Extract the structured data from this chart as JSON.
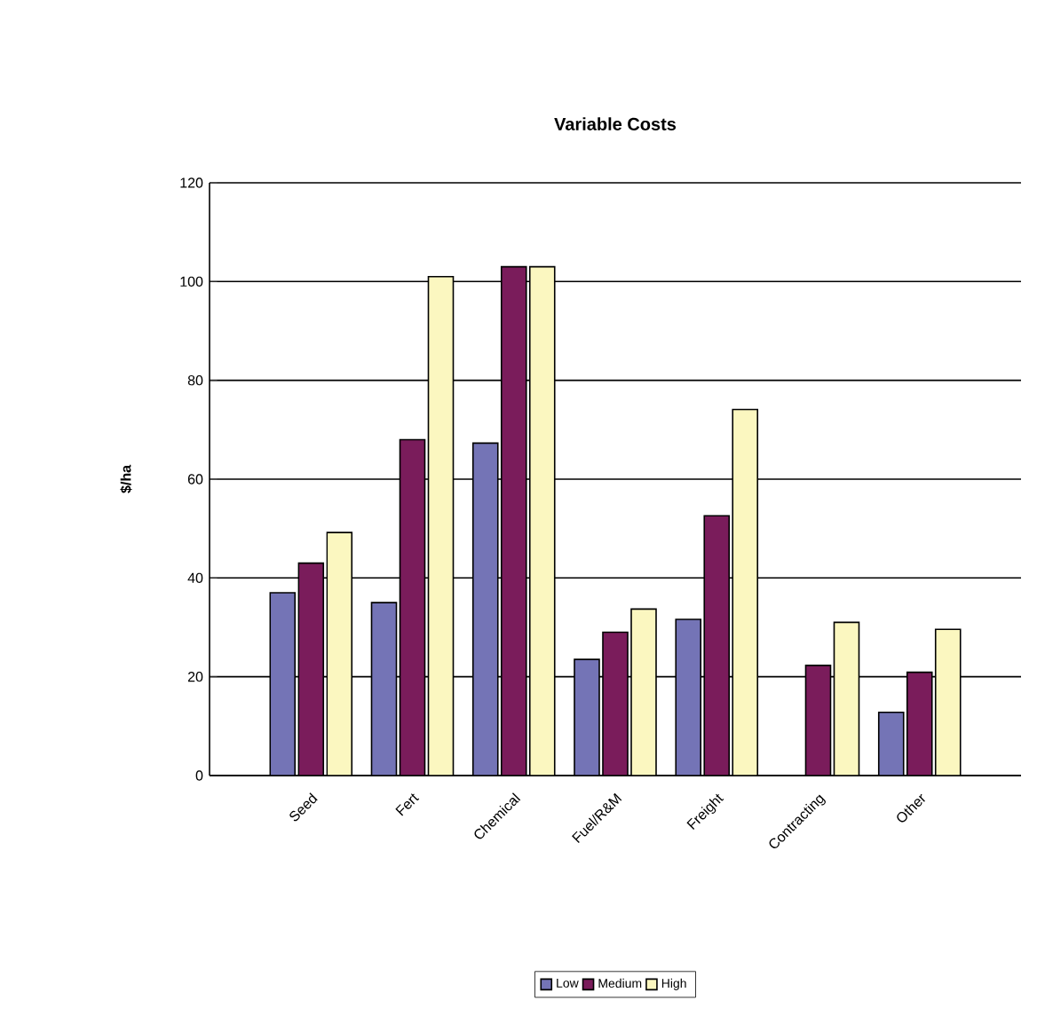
{
  "chart_data": {
    "type": "bar",
    "title": "Variable Costs",
    "ylabel": "$/ha",
    "categories": [
      "Seed",
      "Fert",
      "Chemical",
      "Fuel/R&M",
      "Freight",
      "Contracting",
      "Other"
    ],
    "series": [
      {
        "name": "Low",
        "color": "#7474b6",
        "values": [
          37,
          35,
          67.3,
          23.5,
          31.6,
          null,
          12.8
        ]
      },
      {
        "name": "Medium",
        "color": "#7a1c5b",
        "values": [
          43,
          68,
          103,
          29,
          52.6,
          22.3,
          20.9
        ]
      },
      {
        "name": "High",
        "color": "#fbf7c0",
        "values": [
          49.2,
          101,
          103,
          33.7,
          74.1,
          31,
          29.6
        ]
      }
    ],
    "ylim": [
      0,
      120
    ],
    "yticks": [
      0,
      20,
      40,
      60,
      80,
      100,
      120
    ],
    "grid": "y",
    "legend": "bottom"
  }
}
